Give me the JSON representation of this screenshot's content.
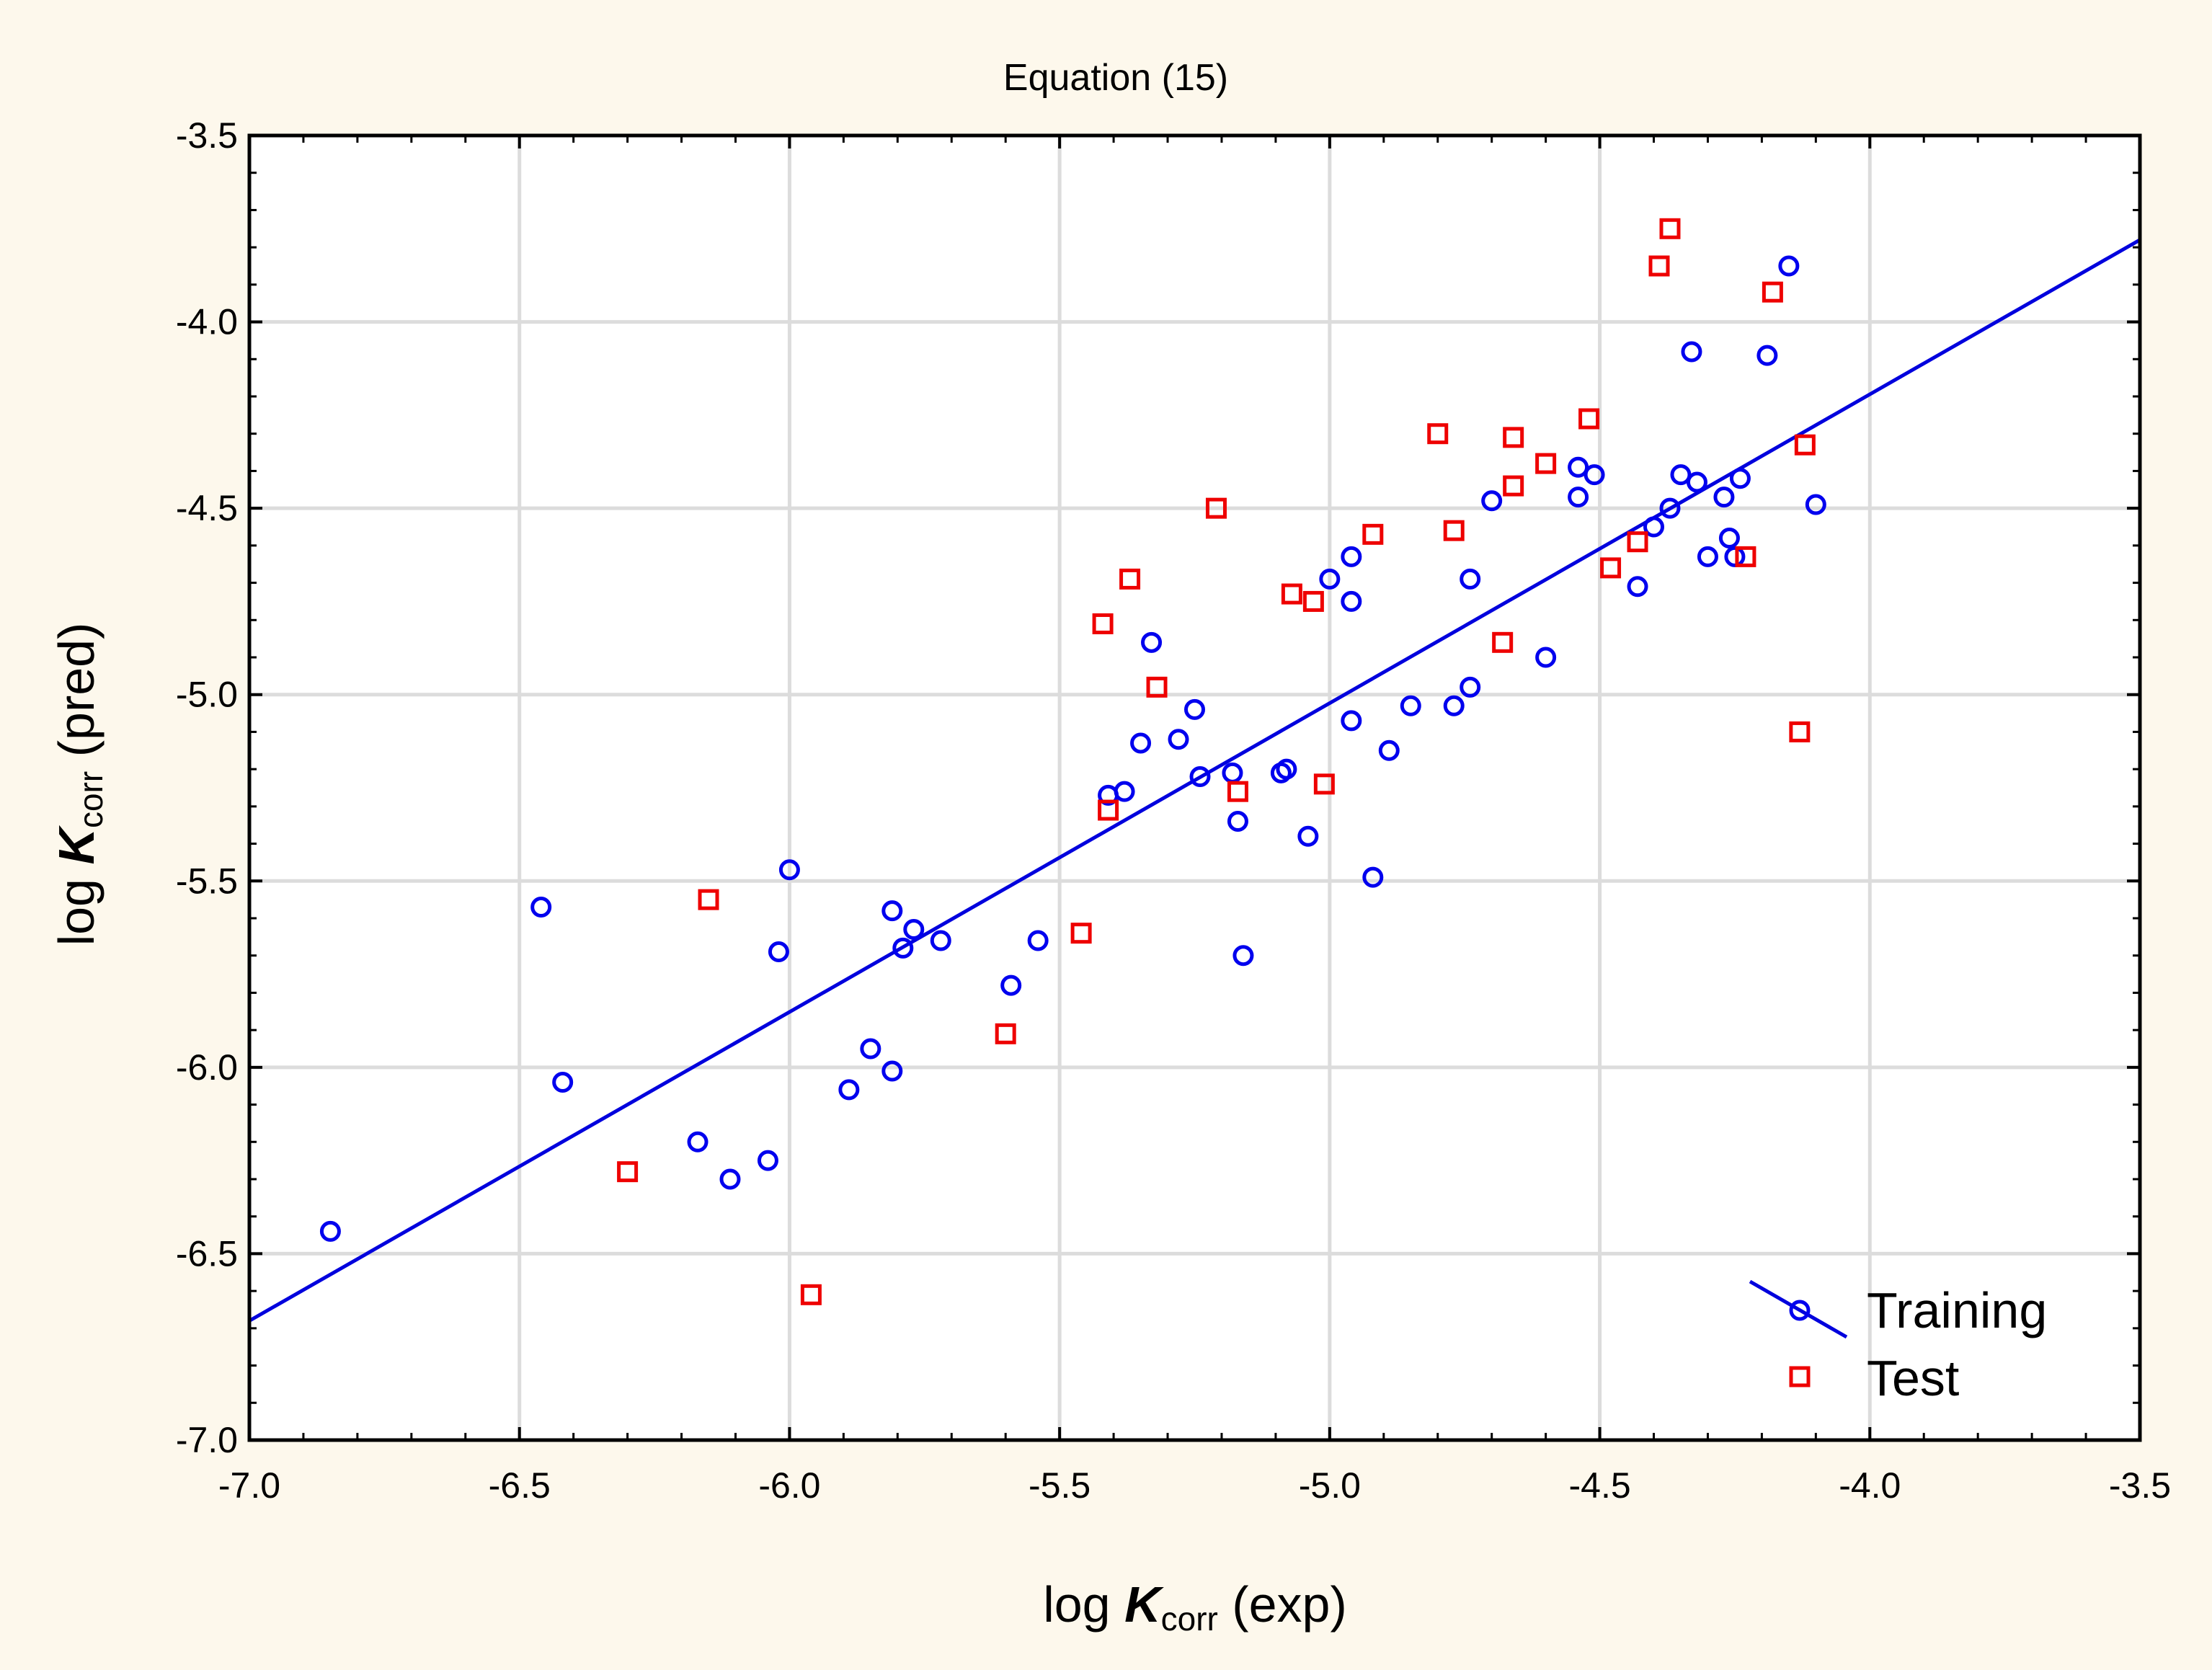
{
  "chart_data": {
    "type": "scatter",
    "title": "Equation (15)",
    "xlabel": {
      "prefix": "log ",
      "symbol": "K",
      "subscript": "corr",
      "suffix": " (exp)"
    },
    "ylabel": {
      "prefix": "log ",
      "symbol": "K",
      "subscript": "corr",
      "suffix": " (pred)"
    },
    "xlim": [
      -7.0,
      -3.5
    ],
    "ylim": [
      -7.0,
      -3.5
    ],
    "xticks": [
      -7.0,
      -6.5,
      -6.0,
      -5.5,
      -5.0,
      -4.5,
      -4.0,
      -3.5
    ],
    "yticks": [
      -7.0,
      -6.5,
      -6.0,
      -5.5,
      -5.0,
      -4.5,
      -4.0,
      -3.5
    ],
    "xtick_labels": [
      "-7.0",
      "-6.5",
      "-6.0",
      "-5.5",
      "-5.0",
      "-4.5",
      "-4.0",
      "-3.5"
    ],
    "ytick_labels": [
      "-7.0",
      "-6.5",
      "-6.0",
      "-5.5",
      "-5.0",
      "-4.5",
      "-4.0",
      "-3.5"
    ],
    "grid": true,
    "legend_position": "bottom-right",
    "fit_line": {
      "x": [
        -7.0,
        -3.5
      ],
      "y": [
        -6.68,
        -3.78
      ],
      "color": "#0000dd"
    },
    "series": [
      {
        "name": "Training",
        "marker": "circle",
        "color": "#0000ee",
        "points": [
          [
            -6.85,
            -6.44
          ],
          [
            -6.46,
            -5.57
          ],
          [
            -6.42,
            -6.04
          ],
          [
            -6.17,
            -6.2
          ],
          [
            -6.11,
            -6.3
          ],
          [
            -6.04,
            -6.25
          ],
          [
            -6.02,
            -5.69
          ],
          [
            -6.0,
            -5.47
          ],
          [
            -5.89,
            -6.06
          ],
          [
            -5.85,
            -5.95
          ],
          [
            -5.81,
            -5.58
          ],
          [
            -5.81,
            -6.01
          ],
          [
            -5.79,
            -5.68
          ],
          [
            -5.77,
            -5.63
          ],
          [
            -5.72,
            -5.66
          ],
          [
            -5.59,
            -5.78
          ],
          [
            -5.54,
            -5.66
          ],
          [
            -5.41,
            -5.27
          ],
          [
            -5.38,
            -5.26
          ],
          [
            -5.35,
            -5.13
          ],
          [
            -5.33,
            -4.86
          ],
          [
            -5.28,
            -5.12
          ],
          [
            -5.25,
            -5.04
          ],
          [
            -5.24,
            -5.22
          ],
          [
            -5.18,
            -5.21
          ],
          [
            -5.17,
            -5.34
          ],
          [
            -5.16,
            -5.7
          ],
          [
            -5.09,
            -5.21
          ],
          [
            -5.08,
            -5.2
          ],
          [
            -5.04,
            -5.38
          ],
          [
            -5.0,
            -4.69
          ],
          [
            -4.96,
            -4.63
          ],
          [
            -4.96,
            -4.75
          ],
          [
            -4.96,
            -5.07
          ],
          [
            -4.92,
            -5.49
          ],
          [
            -4.89,
            -5.15
          ],
          [
            -4.85,
            -5.03
          ],
          [
            -4.77,
            -5.03
          ],
          [
            -4.74,
            -4.69
          ],
          [
            -4.74,
            -4.98
          ],
          [
            -4.7,
            -4.48
          ],
          [
            -4.6,
            -4.9
          ],
          [
            -4.54,
            -4.39
          ],
          [
            -4.54,
            -4.47
          ],
          [
            -4.51,
            -4.41
          ],
          [
            -4.43,
            -4.71
          ],
          [
            -4.4,
            -4.55
          ],
          [
            -4.37,
            -4.5
          ],
          [
            -4.35,
            -4.41
          ],
          [
            -4.33,
            -4.08
          ],
          [
            -4.32,
            -4.43
          ],
          [
            -4.3,
            -4.63
          ],
          [
            -4.27,
            -4.47
          ],
          [
            -4.26,
            -4.58
          ],
          [
            -4.25,
            -4.63
          ],
          [
            -4.24,
            -4.42
          ],
          [
            -4.19,
            -4.09
          ],
          [
            -4.15,
            -3.85
          ],
          [
            -4.1,
            -4.49
          ]
        ]
      },
      {
        "name": "Test",
        "marker": "square",
        "color": "#ee0000",
        "points": [
          [
            -6.3,
            -6.28
          ],
          [
            -6.15,
            -5.55
          ],
          [
            -5.96,
            -6.61
          ],
          [
            -5.6,
            -5.91
          ],
          [
            -5.46,
            -5.64
          ],
          [
            -5.42,
            -4.81
          ],
          [
            -5.41,
            -5.31
          ],
          [
            -5.37,
            -4.69
          ],
          [
            -5.32,
            -4.98
          ],
          [
            -5.21,
            -4.5
          ],
          [
            -5.17,
            -5.26
          ],
          [
            -5.07,
            -4.73
          ],
          [
            -5.03,
            -4.75
          ],
          [
            -5.01,
            -5.24
          ],
          [
            -4.92,
            -4.57
          ],
          [
            -4.8,
            -4.3
          ],
          [
            -4.77,
            -4.56
          ],
          [
            -4.68,
            -4.86
          ],
          [
            -4.66,
            -4.31
          ],
          [
            -4.66,
            -4.44
          ],
          [
            -4.6,
            -4.38
          ],
          [
            -4.52,
            -4.26
          ],
          [
            -4.48,
            -4.66
          ],
          [
            -4.43,
            -4.59
          ],
          [
            -4.39,
            -3.85
          ],
          [
            -4.37,
            -3.75
          ],
          [
            -4.23,
            -4.63
          ],
          [
            -4.18,
            -3.92
          ],
          [
            -4.13,
            -5.1
          ],
          [
            -4.12,
            -4.33
          ]
        ]
      }
    ]
  }
}
